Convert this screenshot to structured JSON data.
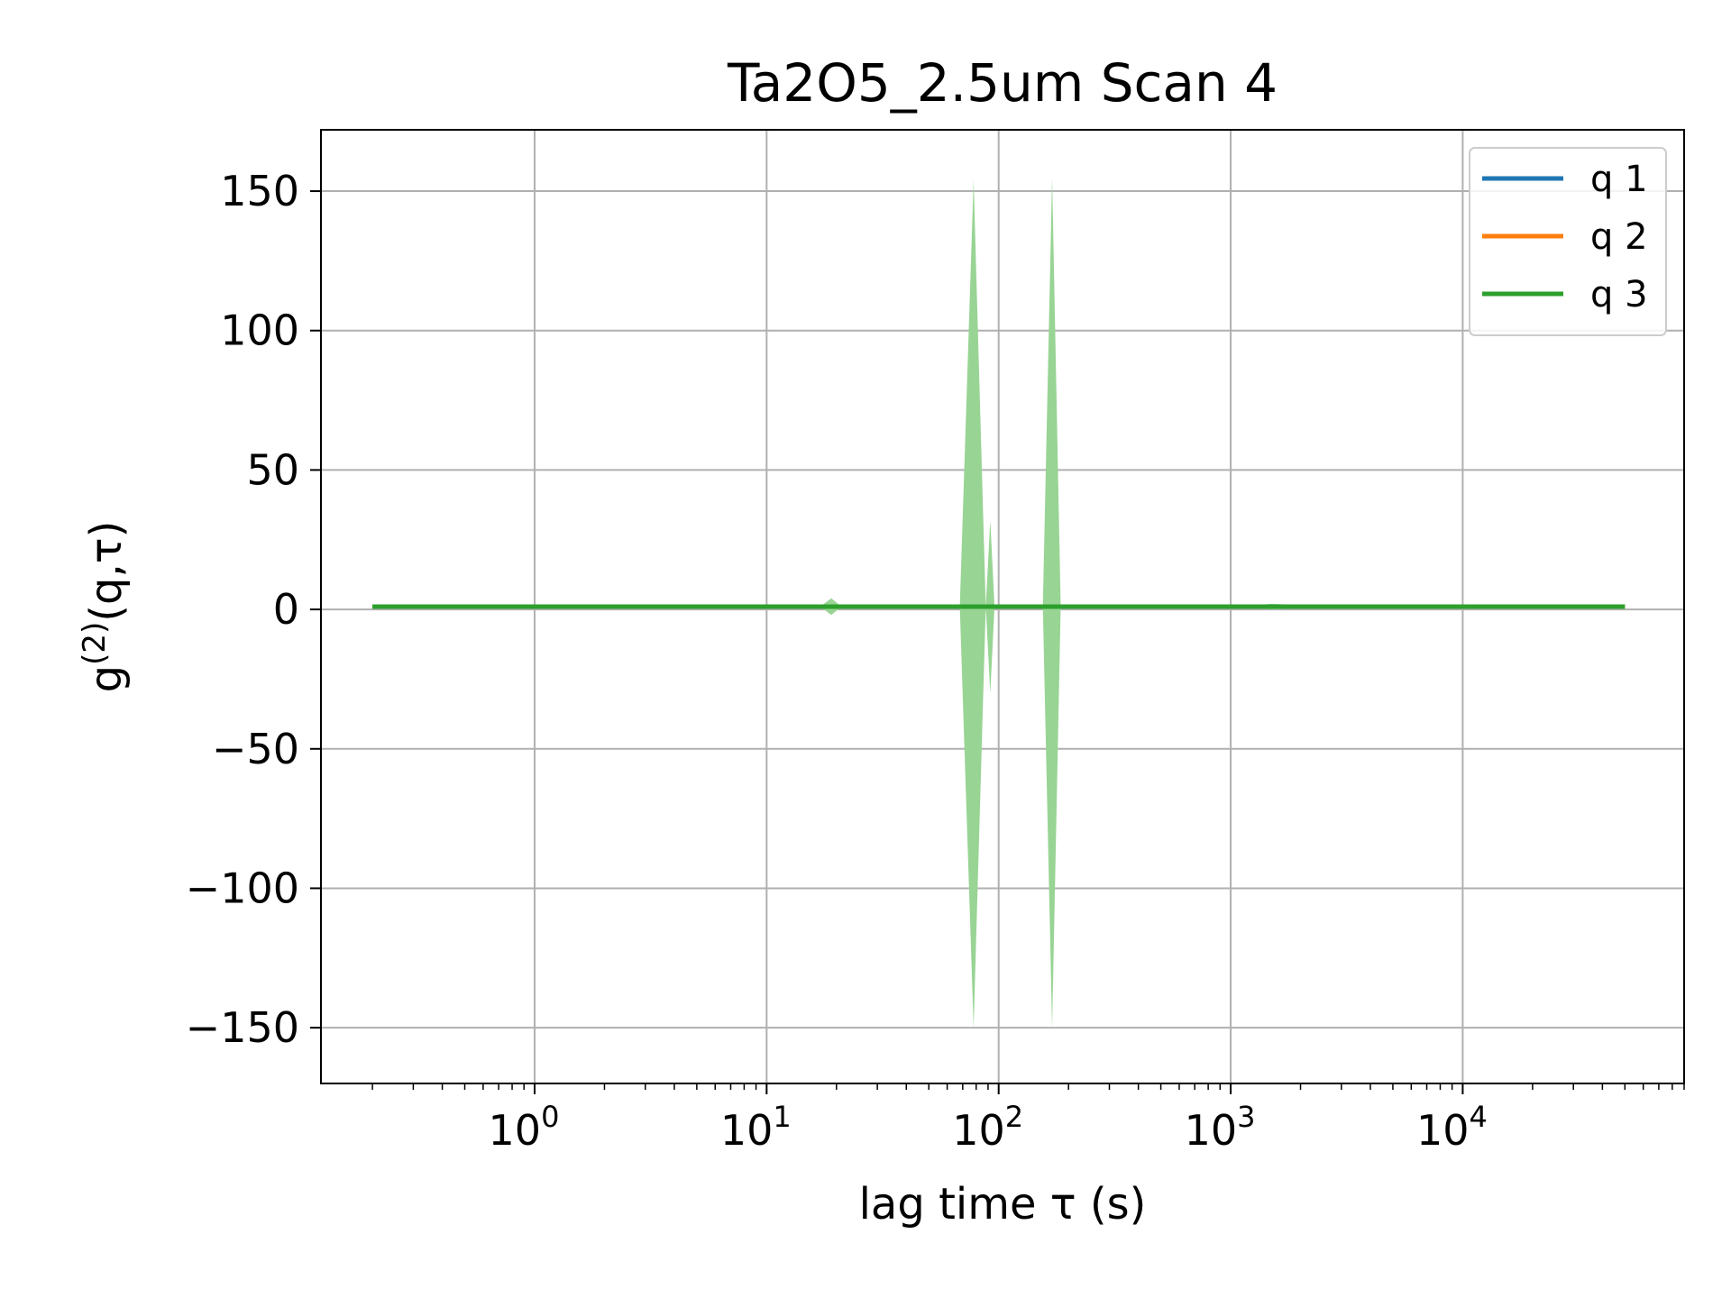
{
  "chart_data": {
    "type": "line",
    "title": "Ta2O5_2.5um Scan 4",
    "xlabel": "lag time τ (s)",
    "ylabel": {
      "base": "g",
      "sup": "(2)",
      "rest": "(q,τ)"
    },
    "xscale": "log",
    "xlim": [
      0.12,
      90000
    ],
    "ylim": [
      -170,
      172
    ],
    "grid": true,
    "legend_position": "top-right",
    "x_ticks": [
      {
        "value": 1,
        "base": "10",
        "exp": "0"
      },
      {
        "value": 10,
        "base": "10",
        "exp": "1"
      },
      {
        "value": 100,
        "base": "10",
        "exp": "2"
      },
      {
        "value": 1000,
        "base": "10",
        "exp": "3"
      },
      {
        "value": 10000,
        "base": "10",
        "exp": "4"
      }
    ],
    "y_ticks": [
      {
        "value": 150,
        "label": "150"
      },
      {
        "value": 100,
        "label": "100"
      },
      {
        "value": 50,
        "label": "50"
      },
      {
        "value": 0,
        "label": "0"
      },
      {
        "value": -50,
        "label": "−50"
      },
      {
        "value": -100,
        "label": "−100"
      },
      {
        "value": -150,
        "label": "−150"
      }
    ],
    "series": [
      {
        "name": "q 1",
        "color": "#1f77b4",
        "x": [
          0.2,
          1,
          10,
          100,
          1000,
          10000,
          50000
        ],
        "y": [
          1.0,
          1.0,
          1.0,
          1.0,
          1.0,
          1.0,
          1.0
        ]
      },
      {
        "name": "q 2",
        "color": "#ff7f0e",
        "x": [
          0.2,
          1,
          10,
          100,
          1000,
          10000,
          50000
        ],
        "y": [
          1.0,
          1.0,
          1.0,
          1.0,
          1.0,
          1.0,
          1.0
        ]
      },
      {
        "name": "q 3",
        "color": "#2ca02c",
        "x": [
          0.2,
          1,
          10,
          19,
          60,
          78,
          92,
          170,
          1000,
          2000,
          10000,
          50000
        ],
        "y": [
          1.0,
          1.0,
          1.0,
          1.0,
          1.0,
          1.0,
          1.0,
          1.0,
          1.0,
          1.0,
          1.0,
          1.0
        ],
        "band": {
          "color": "#98d494",
          "x": [
            0.2,
            17,
            19,
            21,
            68,
            78,
            88,
            92,
            96,
            155,
            170,
            185,
            1000,
            1500,
            3000,
            50000
          ],
          "lower": [
            1,
            1,
            -2,
            1,
            1,
            -150,
            1,
            -30,
            1,
            1,
            -150,
            1,
            1,
            0,
            1,
            1
          ],
          "upper": [
            1,
            1,
            4,
            1,
            1,
            154,
            1,
            32,
            1,
            1,
            155,
            1,
            1,
            2,
            1,
            1
          ]
        }
      }
    ]
  }
}
